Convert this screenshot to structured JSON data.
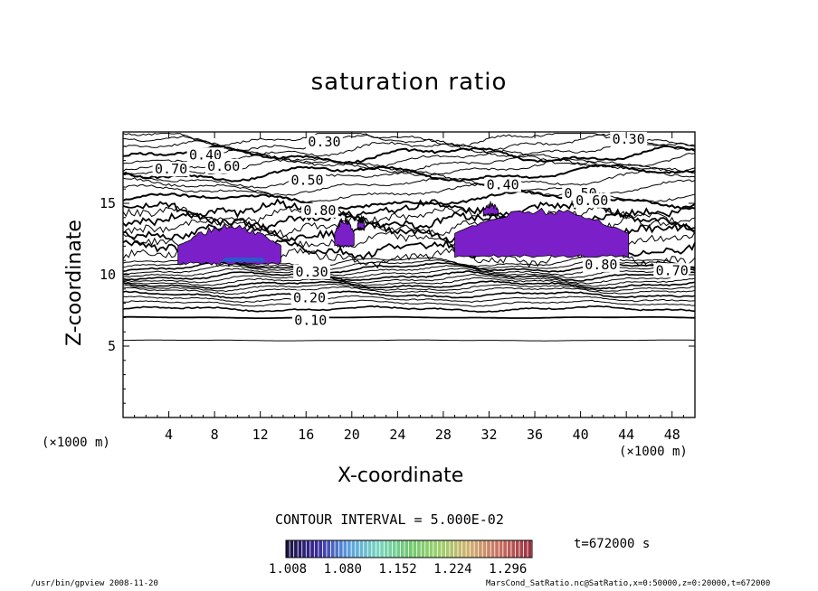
{
  "chart_data": {
    "type": "heatmap",
    "title": "saturation ratio",
    "xlabel": "X-coordinate",
    "ylabel": "Z-coordinate",
    "x_unit": "(×1000 m)",
    "y_unit": "(×1000 m)",
    "xlim": [
      0,
      50
    ],
    "ylim": [
      0,
      20
    ],
    "x_ticks": [
      4,
      8,
      12,
      16,
      20,
      24,
      28,
      32,
      36,
      40,
      44,
      48
    ],
    "y_ticks": [
      5,
      10,
      15
    ],
    "contour_interval_text": "CONTOUR INTERVAL = 5.000E-02",
    "contour_labels": [
      {
        "text": "0.30",
        "x": 17.6,
        "z": 19.3
      },
      {
        "text": "0.30",
        "x": 44.2,
        "z": 19.5
      },
      {
        "text": "0.40",
        "x": 7.2,
        "z": 18.4
      },
      {
        "text": "0.70",
        "x": 4.2,
        "z": 17.4
      },
      {
        "text": "0.60",
        "x": 8.8,
        "z": 17.6
      },
      {
        "text": "0.50",
        "x": 16.1,
        "z": 16.6
      },
      {
        "text": "0.40",
        "x": 33.2,
        "z": 16.3
      },
      {
        "text": "0.50",
        "x": 40.0,
        "z": 15.7
      },
      {
        "text": "0.60",
        "x": 41.0,
        "z": 15.2
      },
      {
        "text": "0.80",
        "x": 17.2,
        "z": 14.5
      },
      {
        "text": "0.80",
        "x": 41.8,
        "z": 10.7
      },
      {
        "text": "0.70",
        "x": 48.0,
        "z": 10.3
      },
      {
        "text": "0.30",
        "x": 16.5,
        "z": 10.2
      },
      {
        "text": "0.20",
        "x": 16.3,
        "z": 8.4
      },
      {
        "text": "0.10",
        "x": 16.4,
        "z": 6.8
      }
    ],
    "filled_regions_color": "#7b1fc8",
    "colorbar": {
      "ticks": [
        "1.008",
        "1.080",
        "1.152",
        "1.224",
        "1.296"
      ],
      "range": [
        1.008,
        1.33
      ],
      "colors": [
        "#1a1440",
        "#3a2aa0",
        "#5a9ee0",
        "#7ad6c0",
        "#6ec86e",
        "#9ad06a",
        "#d0b070",
        "#c87060",
        "#a03040"
      ]
    }
  },
  "time_label": "t=672000 s",
  "footer": {
    "left": "/usr/bin/gpview  2008-11-20",
    "right": "MarsCond_SatRatio.nc@SatRatio,x=0:50000,z=0:20000,t=672000"
  }
}
